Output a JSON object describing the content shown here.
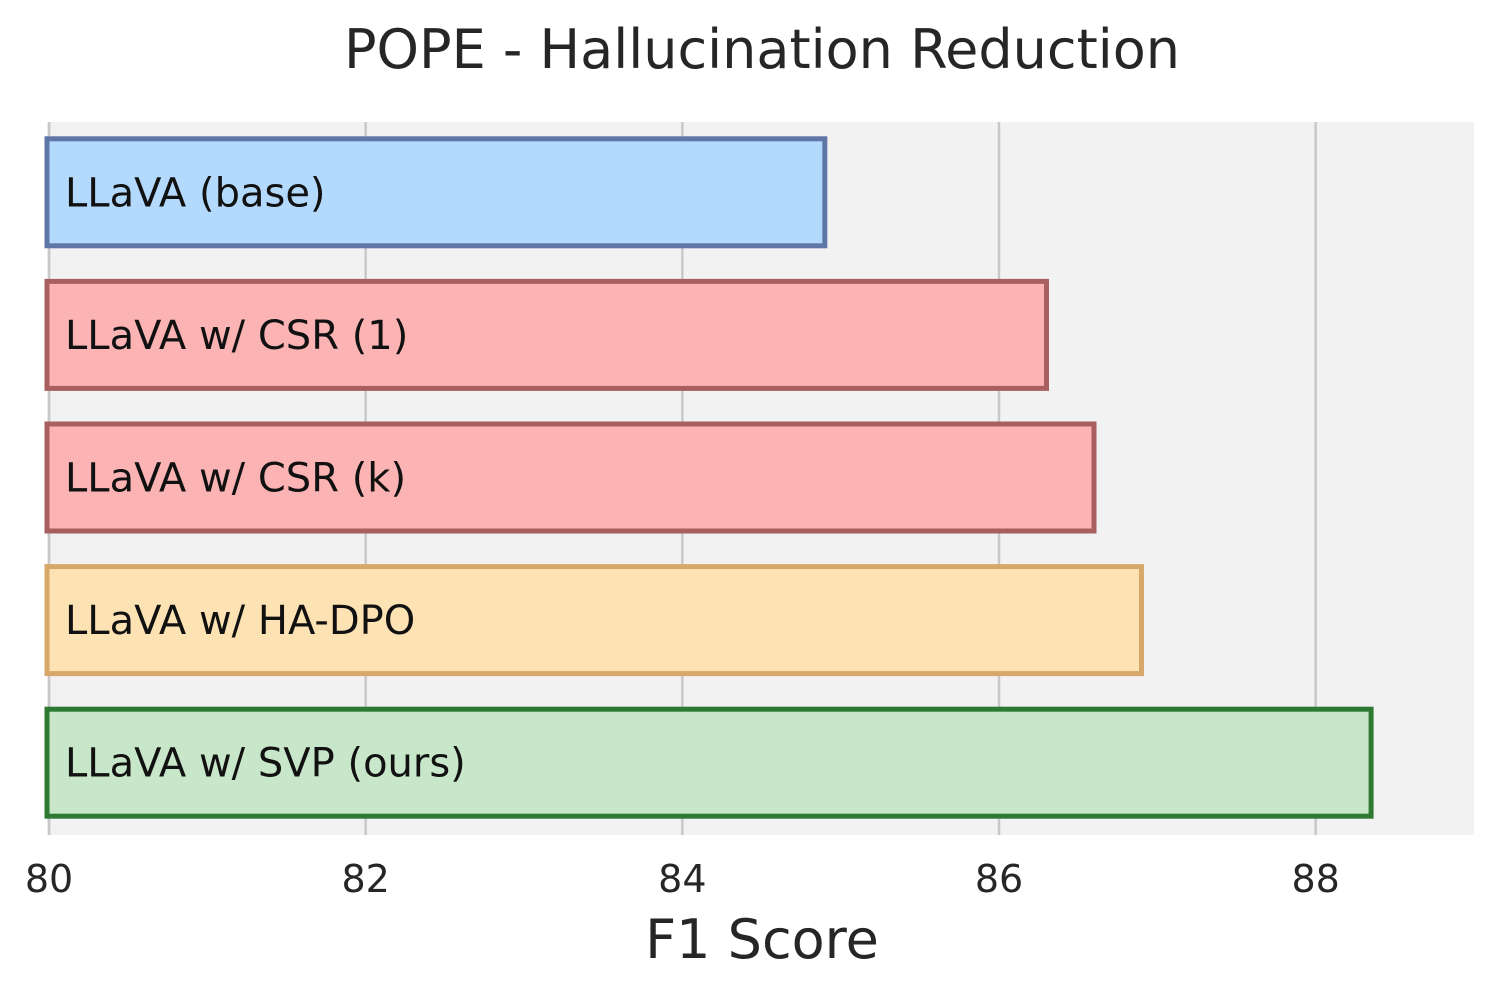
{
  "chart_data": {
    "type": "bar",
    "orientation": "horizontal",
    "title": "POPE - Hallucination Reduction",
    "xlabel": "F1 Score",
    "ylabel": "",
    "xlim": [
      80,
      89
    ],
    "xticks": [
      80,
      82,
      84,
      86,
      88
    ],
    "grid": true,
    "categories": [
      "LLaVA (base)",
      "LLaVA w/ CSR (1)",
      "LLaVA w/ CSR (k)",
      "LLaVA w/ HA-DPO",
      "LLaVA w/ SVP (ours)"
    ],
    "values": [
      84.9,
      86.3,
      86.6,
      86.9,
      88.35
    ],
    "colors": {
      "fills": [
        "#b3d9fc",
        "#fcb3b4",
        "#fcb3b4",
        "#fde3b4",
        "#c8e6c9"
      ],
      "edges": [
        "#5f76a6",
        "#a85f60",
        "#a85f60",
        "#d8a86a",
        "#2e7a32"
      ],
      "background": "#f2f2f2",
      "gridline": "#c8c8c8"
    }
  }
}
